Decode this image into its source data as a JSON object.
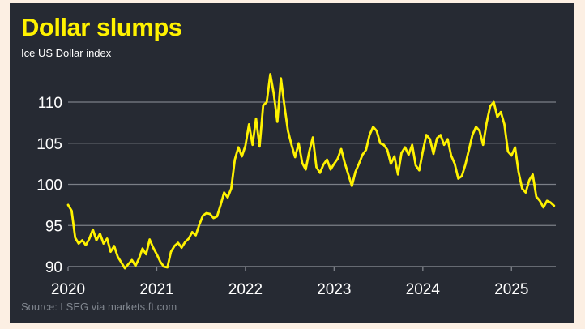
{
  "title": "Dollar slumps",
  "subtitle": "Ice US Dollar index",
  "source": "Source: LSEG via markets.ft.com",
  "colors": {
    "background": "#262a33",
    "line": "#fff200",
    "title": "#fff200",
    "grid": "#7b7f87",
    "page": "#fcefe3"
  },
  "chart_data": {
    "type": "line",
    "title": "Dollar slumps",
    "subtitle": "Ice US Dollar index",
    "xlabel": "",
    "ylabel": "",
    "xlim": [
      2020.0,
      2025.5
    ],
    "ylim": [
      90,
      113.5
    ],
    "x_ticks": [
      "2020",
      "2021",
      "2022",
      "2023",
      "2024",
      "2025"
    ],
    "y_ticks": [
      90,
      95,
      100,
      105,
      110
    ],
    "grid": "horizontal",
    "legend": "none",
    "series": [
      {
        "x": [
          2020.0,
          2020.04,
          2020.08,
          2020.12,
          2020.16,
          2020.2,
          2020.24,
          2020.28,
          2020.32,
          2020.36,
          2020.4,
          2020.44,
          2020.48,
          2020.52,
          2020.56,
          2020.6,
          2020.64,
          2020.68,
          2020.72,
          2020.76,
          2020.8,
          2020.84,
          2020.88,
          2020.92,
          2020.96,
          2021.0,
          2021.04,
          2021.08,
          2021.12,
          2021.16,
          2021.2,
          2021.24,
          2021.28,
          2021.32,
          2021.36,
          2021.4,
          2021.44,
          2021.48,
          2021.52,
          2021.56,
          2021.6,
          2021.64,
          2021.68,
          2021.72,
          2021.76,
          2021.8,
          2021.84,
          2021.88,
          2021.92,
          2021.96,
          2022.0,
          2022.04,
          2022.08,
          2022.12,
          2022.16,
          2022.2,
          2022.24,
          2022.28,
          2022.32,
          2022.36,
          2022.4,
          2022.44,
          2022.48,
          2022.52,
          2022.56,
          2022.6,
          2022.64,
          2022.68,
          2022.72,
          2022.76,
          2022.8,
          2022.84,
          2022.88,
          2022.92,
          2022.96,
          2023.0,
          2023.04,
          2023.08,
          2023.12,
          2023.16,
          2023.2,
          2023.24,
          2023.28,
          2023.32,
          2023.36,
          2023.4,
          2023.44,
          2023.48,
          2023.52,
          2023.56,
          2023.6,
          2023.64,
          2023.68,
          2023.72,
          2023.76,
          2023.8,
          2023.84,
          2023.88,
          2023.92,
          2023.96,
          2024.0,
          2024.04,
          2024.08,
          2024.12,
          2024.16,
          2024.2,
          2024.24,
          2024.28,
          2024.32,
          2024.36,
          2024.4,
          2024.44,
          2024.48,
          2024.52,
          2024.56,
          2024.6,
          2024.64,
          2024.68,
          2024.72,
          2024.76,
          2024.8,
          2024.84,
          2024.88,
          2024.92,
          2024.96,
          2025.0,
          2025.04,
          2025.08,
          2025.12,
          2025.16,
          2025.2,
          2025.24,
          2025.28,
          2025.32,
          2025.36,
          2025.4,
          2025.44,
          2025.48
        ],
        "values": [
          97.5,
          96.8,
          93.5,
          92.8,
          93.2,
          92.6,
          93.4,
          94.5,
          93.2,
          94.0,
          92.8,
          93.4,
          91.8,
          92.5,
          91.2,
          90.5,
          89.8,
          90.3,
          90.8,
          90.1,
          91.0,
          92.2,
          91.5,
          93.3,
          92.3,
          91.5,
          90.6,
          90.0,
          89.9,
          91.8,
          92.5,
          92.9,
          92.3,
          93.0,
          93.4,
          94.2,
          93.8,
          95.1,
          96.2,
          96.5,
          96.4,
          95.9,
          96.1,
          97.5,
          99.0,
          98.4,
          99.5,
          103.0,
          104.5,
          103.4,
          104.7,
          107.3,
          104.8,
          108.0,
          104.6,
          109.6,
          110.0,
          113.4,
          111.0,
          107.6,
          112.9,
          109.5,
          106.5,
          104.8,
          103.3,
          105.0,
          102.6,
          101.8,
          104.0,
          105.7,
          102.1,
          101.4,
          102.4,
          103.0,
          101.8,
          102.5,
          103.1,
          104.3,
          102.6,
          101.2,
          99.8,
          101.5,
          102.5,
          103.6,
          104.2,
          106.0,
          107.0,
          106.5,
          105.0,
          104.8,
          104.2,
          102.5,
          103.4,
          101.2,
          103.8,
          104.5,
          103.6,
          104.8,
          102.3,
          101.7,
          104.0,
          106.0,
          105.5,
          103.7,
          105.6,
          106.0,
          104.8,
          105.5,
          103.5,
          102.5,
          100.7,
          101.0,
          102.4,
          104.2,
          106.0,
          107.0,
          106.5,
          104.8,
          107.5,
          109.5,
          110.0,
          108.2,
          108.8,
          107.3,
          104.0,
          103.5,
          104.5,
          101.5,
          99.5,
          99.0,
          100.5,
          101.2,
          98.5,
          98.0,
          97.2,
          98.0,
          97.8,
          97.4
        ]
      }
    ]
  }
}
